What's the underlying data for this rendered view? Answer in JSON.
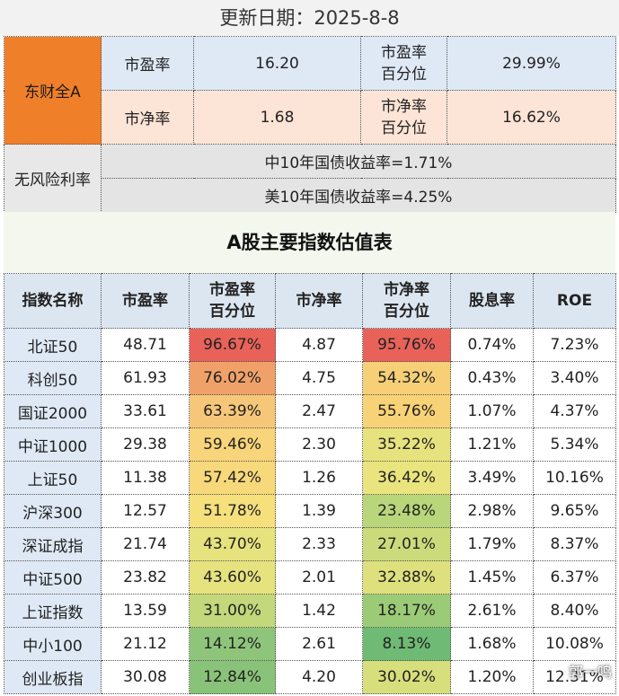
{
  "update_label": "更新日期：2025-8-8",
  "summary": {
    "market_label": "东财全A",
    "pe_label": "市盈率",
    "pe_value": "16.20",
    "pe_pct_label": "市盈率\n百分位",
    "pe_pct_value": "29.99%",
    "pb_label": "市净率",
    "pb_value": "1.68",
    "pb_pct_label": "市净率\n百分位",
    "pb_pct_value": "16.62%",
    "risk_free_label": "无风险利率",
    "cn_bond": "中10年国债收益率=1.71%",
    "us_bond": "美10年国债收益率=4.25%"
  },
  "table_title": "A股主要指数估值表",
  "headers": [
    "指数名称",
    "市盈率",
    "市盈率\n百分位",
    "市净率",
    "市净率\n百分位",
    "股息率",
    "ROE"
  ],
  "rows": [
    {
      "name": "北证50",
      "pe": "48.71",
      "pe_pct": "96.67%",
      "pb": "4.87",
      "pb_pct": "95.76%",
      "div": "0.74%",
      "roe": "7.23%",
      "pe_color": "#e8625a",
      "pb_color": "#e8625a"
    },
    {
      "name": "科创50",
      "pe": "61.93",
      "pe_pct": "76.02%",
      "pb": "4.75",
      "pb_pct": "54.32%",
      "div": "0.43%",
      "roe": "3.40%",
      "pe_color": "#f0a16a",
      "pb_color": "#f6cf76"
    },
    {
      "name": "国证2000",
      "pe": "33.61",
      "pe_pct": "63.39%",
      "pb": "2.47",
      "pb_pct": "55.76%",
      "div": "1.07%",
      "roe": "4.37%",
      "pe_color": "#f6c779",
      "pb_color": "#f8d276"
    },
    {
      "name": "中证1000",
      "pe": "29.38",
      "pe_pct": "59.46%",
      "pb": "2.30",
      "pb_pct": "35.22%",
      "div": "1.21%",
      "roe": "5.34%",
      "pe_color": "#f8d47a",
      "pb_color": "#e6e37e"
    },
    {
      "name": "上证50",
      "pe": "11.38",
      "pe_pct": "57.42%",
      "pb": "1.26",
      "pb_pct": "36.42%",
      "div": "3.49%",
      "roe": "10.16%",
      "pe_color": "#f7d87a",
      "pb_color": "#e9e47e"
    },
    {
      "name": "沪深300",
      "pe": "12.57",
      "pe_pct": "51.78%",
      "pb": "1.39",
      "pb_pct": "23.48%",
      "div": "2.98%",
      "roe": "9.65%",
      "pe_color": "#f5e07c",
      "pb_color": "#b9d67a"
    },
    {
      "name": "深证成指",
      "pe": "21.74",
      "pe_pct": "43.70%",
      "pb": "2.33",
      "pb_pct": "27.01%",
      "div": "1.79%",
      "roe": "8.37%",
      "pe_color": "#e6e27e",
      "pb_color": "#cbdb7b"
    },
    {
      "name": "中证500",
      "pe": "23.82",
      "pe_pct": "43.60%",
      "pb": "2.01",
      "pb_pct": "32.88%",
      "div": "1.45%",
      "roe": "6.37%",
      "pe_color": "#e6e27e",
      "pb_color": "#dee07d"
    },
    {
      "name": "上证指数",
      "pe": "13.59",
      "pe_pct": "31.00%",
      "pb": "1.42",
      "pb_pct": "18.17%",
      "div": "2.61%",
      "roe": "8.40%",
      "pe_color": "#c3d87b",
      "pb_color": "#9ccb78"
    },
    {
      "name": "中小100",
      "pe": "21.12",
      "pe_pct": "14.12%",
      "pb": "2.61",
      "pb_pct": "8.13%",
      "div": "1.68%",
      "roe": "10.08%",
      "pe_color": "#8fc57a",
      "pb_color": "#6fba74"
    },
    {
      "name": "创业板指",
      "pe": "30.08",
      "pe_pct": "12.84%",
      "pb": "4.20",
      "pb_pct": "30.02%",
      "div": "1.20%",
      "roe": "12.31%",
      "pe_color": "#89c379",
      "pb_color": "#d7de7c"
    }
  ],
  "watermark": "郭一鸣"
}
